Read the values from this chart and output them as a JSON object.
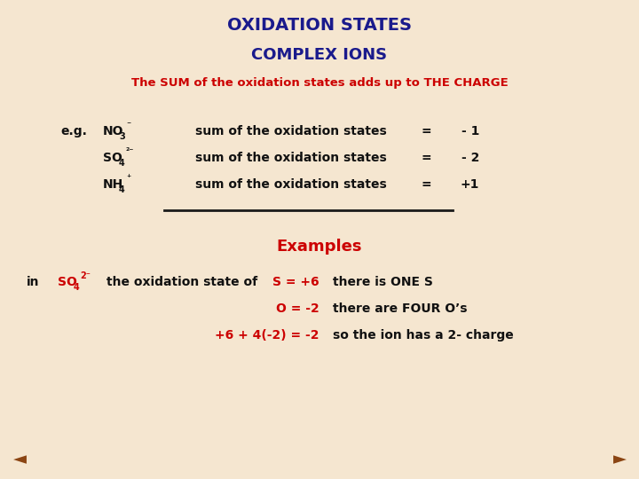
{
  "title": "OXIDATION STATES",
  "subtitle": "COMPLEX IONS",
  "subtitle2": "The SUM of the oxidation states adds up to THE CHARGE",
  "bg_color": "#f5e6d0",
  "title_color": "#1a1a8c",
  "navy_color": "#1a1a8c",
  "red_color": "#cc0000",
  "dark_color": "#111111",
  "eg_label": "e.g.",
  "sum_text": "sum of the oxidation states",
  "charges": [
    "- 1",
    "- 2",
    "+1"
  ],
  "examples_label": "Examples",
  "in_text": "in",
  "oxidation_state_of": "the oxidation state of",
  "s_eq": "S = +6",
  "o_eq": "O = -2",
  "sum_eq": "+6 + 4(-2) = -2",
  "s_desc": "there is ONE S",
  "o_desc": "there are FOUR O’s",
  "sum_desc": "so the ion has a 2- charge",
  "left_arrow": "◄",
  "right_arrow": "►",
  "arrow_color": "#8B4513"
}
